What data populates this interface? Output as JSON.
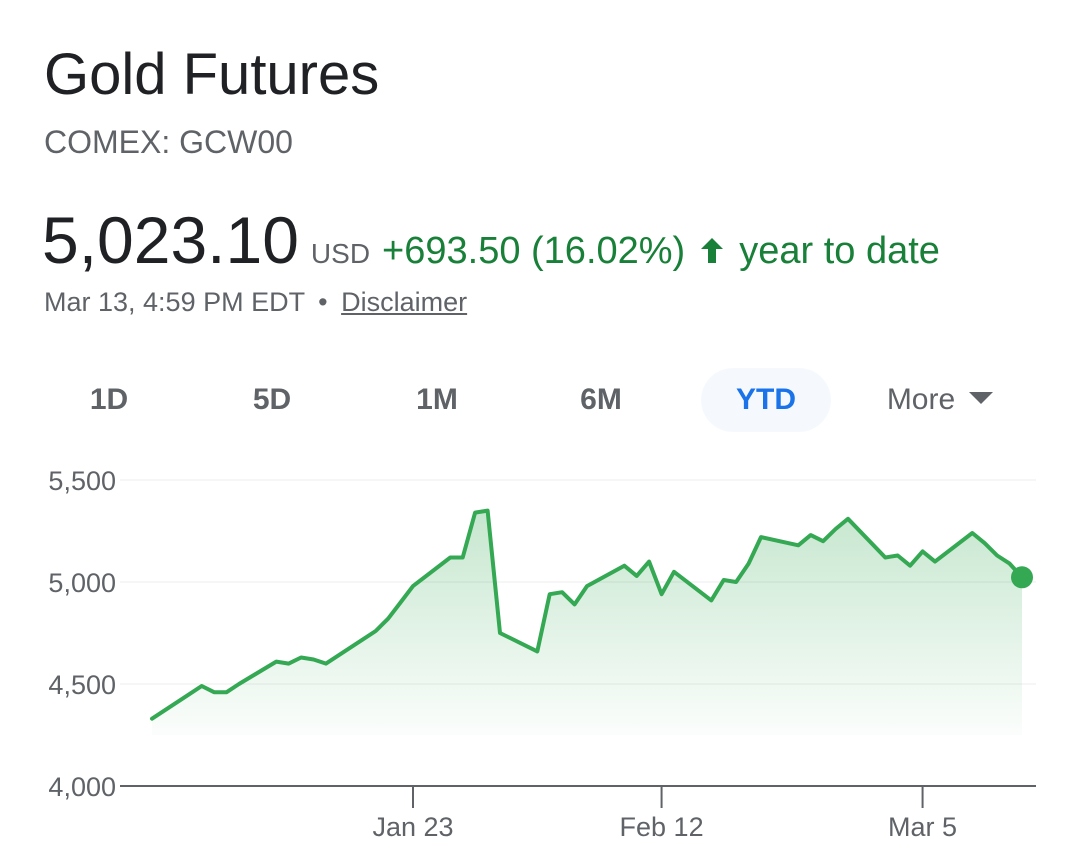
{
  "header": {
    "title": "Gold Futures",
    "ticker": "COMEX: GCW00"
  },
  "quote": {
    "price": "5,023.10",
    "currency": "USD",
    "change": "+693.50 (16.02%)",
    "period": "year to date",
    "timestamp": "Mar 13, 4:59 PM EDT",
    "separator": "•",
    "disclaimer": "Disclaimer",
    "arrow_icon": "arrow-up-icon"
  },
  "tabs": {
    "items": [
      {
        "label": "1D"
      },
      {
        "label": "5D"
      },
      {
        "label": "1M"
      },
      {
        "label": "6M"
      },
      {
        "label": "YTD"
      },
      {
        "label": "More"
      }
    ],
    "active": "YTD"
  },
  "colors": {
    "line": "#34a853",
    "fill": "#34a853",
    "positive_text": "#188038",
    "active_tab": "#1a73e8"
  },
  "chart_data": {
    "type": "area",
    "x": [
      "2026-01-02",
      "2026-01-05",
      "2026-01-06",
      "2026-01-07",
      "2026-01-08",
      "2026-01-09",
      "2026-01-12",
      "2026-01-13",
      "2026-01-14",
      "2026-01-15",
      "2026-01-16",
      "2026-01-20",
      "2026-01-21",
      "2026-01-22",
      "2026-01-23",
      "2026-01-26",
      "2026-01-27",
      "2026-01-28",
      "2026-01-29",
      "2026-01-30",
      "2026-02-02",
      "2026-02-03",
      "2026-02-04",
      "2026-02-05",
      "2026-02-06",
      "2026-02-09",
      "2026-02-10",
      "2026-02-11",
      "2026-02-12",
      "2026-02-13",
      "2026-02-16",
      "2026-02-17",
      "2026-02-18",
      "2026-02-19",
      "2026-02-20",
      "2026-02-23",
      "2026-02-24",
      "2026-02-25",
      "2026-02-26",
      "2026-02-27",
      "2026-03-02",
      "2026-03-03",
      "2026-03-04",
      "2026-03-05",
      "2026-03-06",
      "2026-03-09",
      "2026-03-10",
      "2026-03-11",
      "2026-03-12",
      "2026-03-13"
    ],
    "values": [
      4330,
      4450,
      4490,
      4460,
      4460,
      4500,
      4610,
      4600,
      4630,
      4620,
      4600,
      4760,
      4820,
      4900,
      4980,
      5120,
      5120,
      5340,
      5350,
      4750,
      4660,
      4940,
      4950,
      4890,
      4980,
      5080,
      5030,
      5100,
      4940,
      5050,
      4910,
      5010,
      5000,
      5090,
      5220,
      5180,
      5230,
      5200,
      5260,
      5310,
      5120,
      5130,
      5080,
      5150,
      5100,
      5240,
      5190,
      5130,
      5090,
      5023
    ],
    "x_ticks": [
      {
        "date": "2026-01-23",
        "label": "Jan 23"
      },
      {
        "date": "2026-02-12",
        "label": "Feb 12"
      },
      {
        "date": "2026-03-05",
        "label": "Mar 5"
      }
    ],
    "y_ticks": [
      {
        "value": 4000,
        "label": "4,000"
      },
      {
        "value": 4500,
        "label": "4,500"
      },
      {
        "value": 5000,
        "label": "5,000"
      },
      {
        "value": 5500,
        "label": "5,500"
      }
    ],
    "ylim": [
      4000,
      5500
    ],
    "grid": true,
    "xlabel": "",
    "ylabel": ""
  }
}
